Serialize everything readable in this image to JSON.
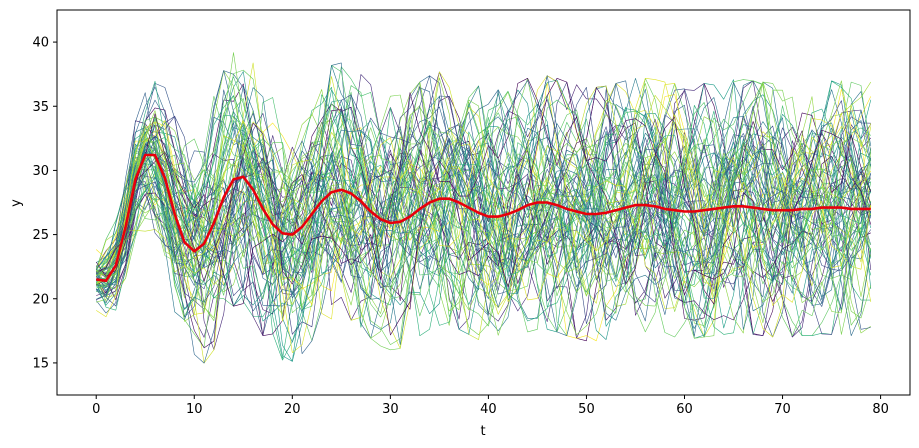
{
  "chart_data": {
    "type": "line",
    "title": "",
    "xlabel": "t",
    "ylabel": "y",
    "xlim": [
      -4,
      83
    ],
    "ylim": [
      12.5,
      42.5
    ],
    "xticks": [
      0,
      10,
      20,
      30,
      40,
      50,
      60,
      70,
      80
    ],
    "yticks": [
      15,
      20,
      25,
      30,
      35,
      40
    ],
    "grid": false,
    "legend": "none",
    "x": [
      0,
      1,
      2,
      3,
      4,
      5,
      6,
      7,
      8,
      9,
      10,
      11,
      12,
      13,
      14,
      15,
      16,
      17,
      18,
      19,
      20,
      21,
      22,
      23,
      24,
      25,
      26,
      27,
      28,
      29,
      30,
      31,
      32,
      33,
      34,
      35,
      36,
      37,
      38,
      39,
      40,
      41,
      42,
      43,
      44,
      45,
      46,
      47,
      48,
      49,
      50,
      51,
      52,
      53,
      54,
      55,
      56,
      57,
      58,
      59,
      60,
      61,
      62,
      63,
      64,
      65,
      66,
      67,
      68,
      69,
      70,
      71,
      72,
      73,
      74,
      75,
      76,
      77,
      78,
      79
    ],
    "ensemble": {
      "count": 80,
      "colormap": "viridis",
      "description_values": "stochastic realizations around the mean, spread growing from about ±1.5 at t=0 to about ±5 later"
    },
    "series": [
      {
        "name": "",
        "color": "#e8000b",
        "values": [
          21.5,
          21.4,
          22.6,
          25.6,
          29.3,
          31.2,
          31.2,
          29.4,
          26.6,
          24.4,
          23.7,
          24.3,
          25.9,
          27.9,
          29.3,
          29.5,
          28.5,
          27.0,
          25.8,
          25.1,
          25.0,
          25.6,
          26.6,
          27.6,
          28.3,
          28.5,
          28.2,
          27.6,
          26.8,
          26.2,
          25.9,
          26.0,
          26.4,
          27.0,
          27.5,
          27.8,
          27.8,
          27.5,
          27.1,
          26.7,
          26.4,
          26.4,
          26.6,
          26.9,
          27.3,
          27.5,
          27.5,
          27.3,
          27.0,
          26.8,
          26.6,
          26.6,
          26.7,
          26.9,
          27.1,
          27.3,
          27.3,
          27.2,
          27.0,
          26.9,
          26.8,
          26.8,
          26.9,
          27.0,
          27.1,
          27.2,
          27.2,
          27.1,
          27.0,
          26.9,
          26.9,
          26.9,
          27.0,
          27.0,
          27.1,
          27.1,
          27.1,
          27.0,
          27.0,
          27.0
        ]
      }
    ]
  }
}
